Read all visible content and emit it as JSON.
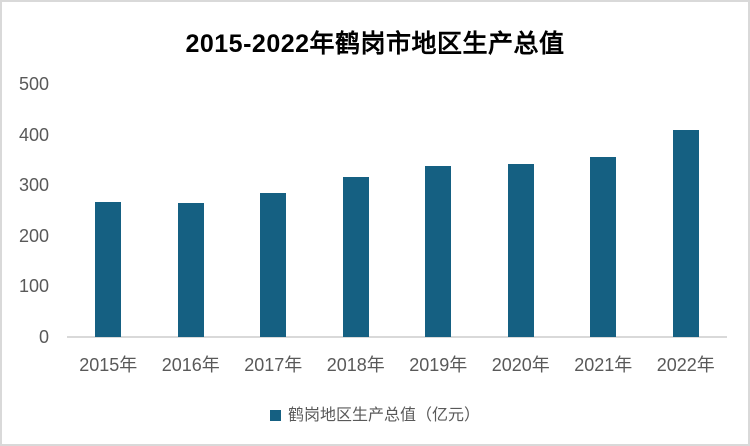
{
  "window": {
    "background_color": "#ffffff",
    "border_color": "#d9d9d9"
  },
  "colors": {
    "bar": "#156082",
    "axis_line": "#d9d9d9",
    "tick_label": "#595959",
    "title_text": "#000000"
  },
  "chart": {
    "title": "2015-2022年鹤岗市地区生产总值",
    "legend_label": "鹤岗地区生产总值（亿元）"
  },
  "chart_data": {
    "type": "bar",
    "title": "2015-2022年鹤岗市地区生产总值",
    "categories": [
      "2015年",
      "2016年",
      "2017年",
      "2018年",
      "2019年",
      "2020年",
      "2021年",
      "2022年"
    ],
    "values": [
      266,
      264,
      284,
      317,
      337,
      341,
      355,
      409
    ],
    "series_name": "鹤岗地区生产总值（亿元）",
    "xlabel": "",
    "ylabel": "",
    "ylim": [
      0,
      500
    ],
    "yticks": [
      0,
      100,
      200,
      300,
      400,
      500
    ],
    "grid": false,
    "legend_position": "bottom",
    "bar_color": "#156082"
  }
}
